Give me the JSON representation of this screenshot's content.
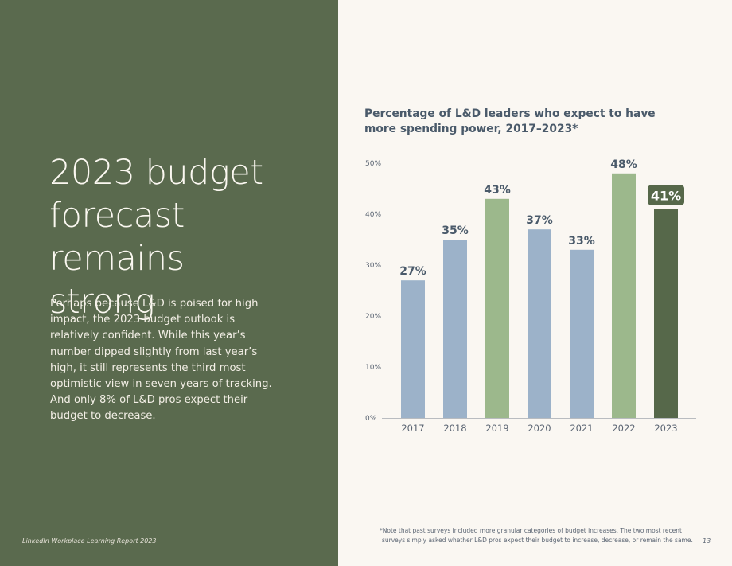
{
  "headline": {
    "line1": "2023 budget",
    "line2": "forecast remains",
    "line3": "strong"
  },
  "body_text": "Perhaps because L&D is poised for high impact, the 2023 budget outlook is relatively confident. While this year’s number dipped slightly from last year’s high, it still represents the third most optimistic view in seven years of tracking. And only 8% of L&D pros expect their budget to decrease.",
  "footer": {
    "report": "LinkedIn Workplace Learning Report 2023",
    "page_number": "13",
    "note_line1": "*Note that past surveys included more granular categories of budget increases. The two most recent",
    "note_line2": "surveys simply asked whether L&D pros expect their budget to increase, decrease, or remain the same."
  },
  "colors": {
    "left_panel": "#5a6a4e",
    "blue_bar": "#9cb2c9",
    "green_bar": "#9cb88c",
    "dark_green_bar": "#56684a",
    "axis_text": "#5a6472"
  },
  "chart_data": {
    "type": "bar",
    "title": "Percentage of L&D leaders who expect to have more spending power, 2017–2023*",
    "categories": [
      "2017",
      "2018",
      "2019",
      "2020",
      "2021",
      "2022",
      "2023"
    ],
    "values": [
      27,
      35,
      43,
      37,
      33,
      48,
      41
    ],
    "value_labels": [
      "27%",
      "35%",
      "43%",
      "37%",
      "33%",
      "48%",
      "41%"
    ],
    "bar_colors": [
      "#9cb2c9",
      "#9cb2c9",
      "#9cb88c",
      "#9cb2c9",
      "#9cb2c9",
      "#9cb88c",
      "#56684a"
    ],
    "highlighted_category": "2023",
    "ylim": [
      0,
      50
    ],
    "yticks": [
      0,
      10,
      20,
      30,
      40,
      50
    ],
    "ytick_labels": [
      "0%",
      "10%",
      "20%",
      "30%",
      "40%",
      "50%"
    ],
    "grid": false
  }
}
